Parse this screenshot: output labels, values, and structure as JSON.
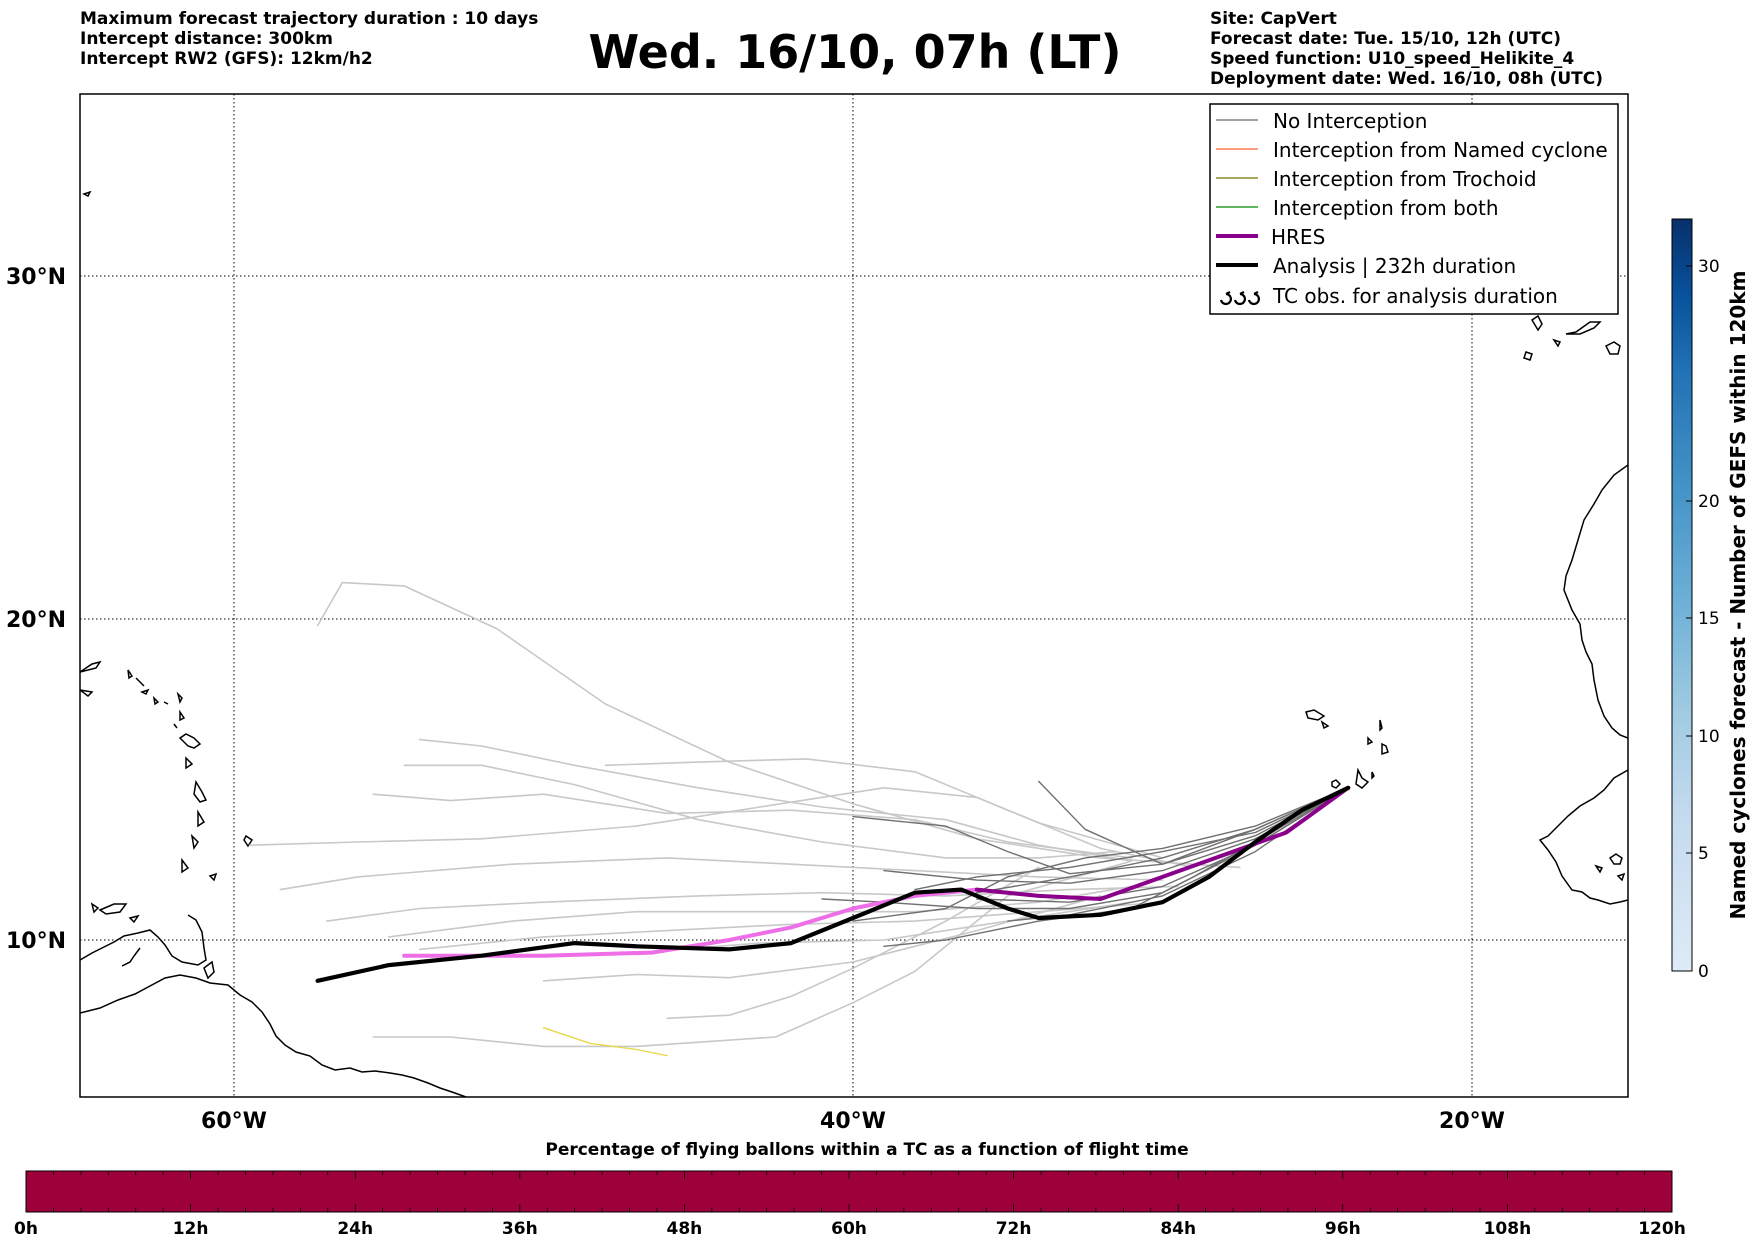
{
  "header_left": [
    "Maximum forecast trajectory duration : 10 days",
    "Intercept distance: 300km",
    "Intercept RW2 (GFS):  12km/h2"
  ],
  "title": "Wed. 16/10, 07h (LT)",
  "header_right": [
    "Site: CapVert",
    "Forecast date: Tue. 15/10, 12h (UTC)",
    "Speed function: U10_speed_Helikite_4",
    "Deployment date: Wed. 16/10, 08h (UTC)"
  ],
  "map": {
    "lon_labels": [
      "60°W",
      "40°W",
      "20°W"
    ],
    "lat_labels": [
      "30°N",
      "20°N",
      "10°N"
    ],
    "lon_range": [
      -65,
      -15
    ],
    "lat_range": [
      5.3,
      34.5
    ],
    "gridlines": true
  },
  "legend": {
    "position": "top-right",
    "items": [
      {
        "label": "No Interception",
        "color": "#808080",
        "style": "thin"
      },
      {
        "label": "Interception from Named cyclone",
        "color": "#ff7f50",
        "style": "thin"
      },
      {
        "label": "Interception from Trochoid",
        "color": "#8b8b2a",
        "style": "thin"
      },
      {
        "label": "Interception from both",
        "color": "#2e9e2e",
        "style": "thin"
      },
      {
        "label": "HRES",
        "color": "#8b008b",
        "style": "thick"
      },
      {
        "label": "Analysis | 232h duration",
        "color": "#000000",
        "style": "thick"
      },
      {
        "label": "TC obs. for analysis duration",
        "color": "#000000",
        "style": "symbol"
      }
    ]
  },
  "colorbar": {
    "label": "Named cyclones forecast - Number of GEFS within 120km",
    "ticks": [
      "0",
      "5",
      "10",
      "15",
      "20",
      "30"
    ],
    "range": [
      0,
      32
    ],
    "colors": [
      "#dde9f5",
      "#c6dbef",
      "#9ecae1",
      "#6baed6",
      "#4292c6",
      "#2171b5",
      "#08519c",
      "#08306b"
    ]
  },
  "percentage_bar": {
    "title": "Percentage of flying ballons within a TC as a function of flight time",
    "ticks": [
      "0h",
      "12h",
      "24h",
      "36h",
      "48h",
      "60h",
      "72h",
      "84h",
      "96h",
      "108h",
      "120h"
    ],
    "color": "#9e0039"
  },
  "tracks": {
    "analysis": [
      [
        -57.3,
        8.7
      ],
      [
        -55,
        9.2
      ],
      [
        -52,
        9.5
      ],
      [
        -49,
        9.9
      ],
      [
        -47,
        9.8
      ],
      [
        -44,
        9.7
      ],
      [
        -42,
        9.9
      ],
      [
        -40,
        10.7
      ],
      [
        -38,
        11.5
      ],
      [
        -36.5,
        11.6
      ],
      [
        -35,
        11.0
      ],
      [
        -34,
        10.7
      ],
      [
        -32,
        10.8
      ],
      [
        -30,
        11.2
      ],
      [
        -28.5,
        12.0
      ],
      [
        -27,
        13.1
      ],
      [
        -25.5,
        14.1
      ],
      [
        -24,
        14.8
      ]
    ],
    "hres": [
      [
        -54.5,
        9.5
      ],
      [
        -50,
        9.5
      ],
      [
        -46.5,
        9.6
      ],
      [
        -44,
        10.0
      ],
      [
        -42,
        10.4
      ],
      [
        -40,
        11.0
      ],
      [
        -38,
        11.4
      ],
      [
        -36,
        11.6
      ],
      [
        -34,
        11.4
      ],
      [
        -32,
        11.3
      ],
      [
        -30,
        12.0
      ],
      [
        -28,
        12.7
      ],
      [
        -26,
        13.4
      ],
      [
        -24,
        14.8
      ]
    ],
    "trochoid_segment": [
      [
        -50,
        7.2
      ],
      [
        -48.5,
        6.7
      ],
      [
        -47,
        6.5
      ],
      [
        -46,
        6.3
      ]
    ],
    "ensemble_dark": [
      [
        [
          -24,
          14.8
        ],
        [
          -27,
          13.5
        ],
        [
          -30,
          12.6
        ],
        [
          -33,
          12.0
        ],
        [
          -36,
          11.5
        ]
      ],
      [
        [
          -24,
          14.8
        ],
        [
          -27,
          13.2
        ],
        [
          -30,
          12.2
        ],
        [
          -33,
          11.8
        ],
        [
          -36,
          11.9
        ],
        [
          -39,
          12.2
        ]
      ],
      [
        [
          -24,
          14.8
        ],
        [
          -27,
          13.4
        ],
        [
          -30,
          12.8
        ],
        [
          -33,
          12.3
        ],
        [
          -36,
          12.0
        ],
        [
          -38,
          11.6
        ]
      ],
      [
        [
          -24,
          14.8
        ],
        [
          -27,
          13.0
        ],
        [
          -30,
          11.7
        ],
        [
          -33,
          11.2
        ],
        [
          -36,
          11.3
        ]
      ],
      [
        [
          -24,
          14.8
        ],
        [
          -27,
          12.8
        ],
        [
          -30,
          11.4
        ],
        [
          -33,
          10.8
        ],
        [
          -35,
          10.6
        ]
      ],
      [
        [
          -24,
          14.8
        ],
        [
          -27,
          13.6
        ],
        [
          -30,
          12.9
        ],
        [
          -32.5,
          12.6
        ],
        [
          -35,
          12.0
        ],
        [
          -37,
          11.0
        ],
        [
          -40,
          10.6
        ]
      ],
      [
        [
          -24,
          14.8
        ],
        [
          -27,
          13.1
        ],
        [
          -29,
          12.0
        ],
        [
          -31,
          11.0
        ],
        [
          -34,
          10.6
        ],
        [
          -37,
          10.0
        ],
        [
          -39,
          9.8
        ]
      ],
      [
        [
          -24,
          14.8
        ],
        [
          -27,
          13.3
        ],
        [
          -30,
          12.4
        ],
        [
          -33,
          12.1
        ],
        [
          -35,
          12.8
        ],
        [
          -37,
          13.6
        ],
        [
          -40,
          13.9
        ]
      ],
      [
        [
          -24,
          14.8
        ],
        [
          -27,
          13.5
        ],
        [
          -30,
          12.4
        ],
        [
          -32.5,
          13.5
        ],
        [
          -34,
          15.0
        ]
      ],
      [
        [
          -24,
          14.8
        ],
        [
          -27,
          13.0
        ],
        [
          -30,
          11.5
        ],
        [
          -33,
          11.0
        ],
        [
          -36,
          11.0
        ],
        [
          -39,
          11.2
        ],
        [
          -41,
          11.3
        ]
      ]
    ],
    "ensemble_light": [
      [
        [
          -27.5,
          12.3
        ],
        [
          -32,
          12.6
        ],
        [
          -36,
          13.2
        ],
        [
          -40,
          14.3
        ],
        [
          -44,
          15.6
        ],
        [
          -48,
          17.4
        ],
        [
          -51.5,
          19.7
        ],
        [
          -54.5,
          21.0
        ],
        [
          -56.5,
          21.1
        ],
        [
          -57.3,
          19.8
        ]
      ],
      [
        [
          -30,
          12.6
        ],
        [
          -34,
          13.7
        ],
        [
          -38,
          15.3
        ],
        [
          -41.5,
          15.7
        ],
        [
          -45,
          15.6
        ],
        [
          -48,
          15.5
        ]
      ],
      [
        [
          -31,
          12.5
        ],
        [
          -34,
          13.0
        ],
        [
          -37,
          13.8
        ],
        [
          -41,
          14.2
        ],
        [
          -45,
          14.8
        ],
        [
          -49,
          15.5
        ],
        [
          -52,
          16.1
        ],
        [
          -54,
          16.3
        ]
      ],
      [
        [
          -29,
          12.3
        ],
        [
          -32,
          12.9
        ],
        [
          -36,
          14.5
        ],
        [
          -39,
          14.8
        ],
        [
          -43,
          14.2
        ],
        [
          -47,
          13.6
        ],
        [
          -52,
          13.2
        ],
        [
          -56,
          13.1
        ],
        [
          -59.5,
          13.0
        ]
      ],
      [
        [
          -31,
          12.6
        ],
        [
          -35,
          13.1
        ],
        [
          -38,
          13.8
        ],
        [
          -42,
          14.1
        ],
        [
          -46,
          14.0
        ],
        [
          -50,
          14.6
        ],
        [
          -53,
          14.4
        ],
        [
          -55.5,
          14.6
        ]
      ],
      [
        [
          -30,
          11.9
        ],
        [
          -34,
          12.0
        ],
        [
          -38,
          12.2
        ],
        [
          -42,
          12.4
        ],
        [
          -46,
          12.6
        ],
        [
          -51,
          12.4
        ],
        [
          -56,
          12.0
        ],
        [
          -58.5,
          11.6
        ]
      ],
      [
        [
          -29.5,
          11.7
        ],
        [
          -33,
          11.6
        ],
        [
          -37,
          11.4
        ],
        [
          -41,
          11.5
        ],
        [
          -45,
          11.4
        ],
        [
          -50,
          11.2
        ],
        [
          -54,
          11.0
        ],
        [
          -57,
          10.6
        ]
      ],
      [
        [
          -31,
          11.7
        ],
        [
          -34,
          11.2
        ],
        [
          -38,
          10.9
        ],
        [
          -42,
          10.9
        ],
        [
          -47,
          10.9
        ],
        [
          -51,
          10.6
        ],
        [
          -55,
          10.1
        ]
      ],
      [
        [
          -30,
          11.2
        ],
        [
          -34,
          10.9
        ],
        [
          -38,
          10.6
        ],
        [
          -42,
          10.5
        ],
        [
          -46,
          10.3
        ],
        [
          -50,
          10.1
        ],
        [
          -54,
          9.7
        ]
      ],
      [
        [
          -31,
          11.2
        ],
        [
          -35,
          10.6
        ],
        [
          -39,
          10.0
        ],
        [
          -43,
          9.9
        ],
        [
          -47,
          9.6
        ],
        [
          -50.5,
          9.5
        ]
      ],
      [
        [
          -32,
          11.4
        ],
        [
          -36,
          10.3
        ],
        [
          -40,
          9.3
        ],
        [
          -44,
          8.8
        ],
        [
          -47,
          8.9
        ],
        [
          -50,
          8.7
        ]
      ],
      [
        [
          -34,
          12.3
        ],
        [
          -37,
          10.6
        ],
        [
          -40,
          9.1
        ],
        [
          -42,
          8.2
        ],
        [
          -44,
          7.6
        ],
        [
          -46,
          7.5
        ]
      ],
      [
        [
          -31,
          12.5
        ],
        [
          -35,
          11.4
        ],
        [
          -38,
          9.0
        ],
        [
          -40,
          8.0
        ],
        [
          -42.5,
          6.9
        ],
        [
          -47,
          6.6
        ],
        [
          -50,
          6.6
        ],
        [
          -53,
          6.9
        ],
        [
          -55.5,
          6.9
        ]
      ],
      [
        [
          -31.5,
          12.8
        ],
        [
          -34,
          12.6
        ],
        [
          -37,
          12.6
        ],
        [
          -41,
          13.1
        ],
        [
          -45,
          13.8
        ],
        [
          -49,
          14.9
        ],
        [
          -52,
          15.5
        ],
        [
          -54.5,
          15.5
        ]
      ]
    ]
  }
}
